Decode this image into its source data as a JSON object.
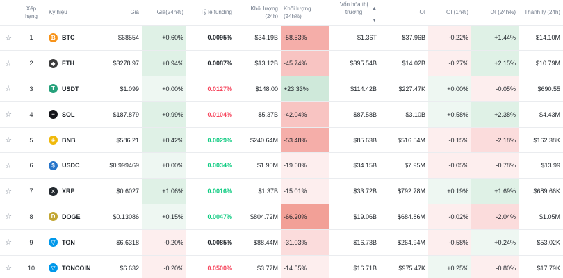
{
  "columns": {
    "rank": "Xếp hạng",
    "symbol": "Ký hiệu",
    "price": "Giá",
    "change24h": "Giá(24h%)",
    "funding": "Tỷ lệ funding",
    "volume": "Khối lượng (24h)",
    "volume_change": "Khối lượng (24h%)",
    "mcap": "Vốn hóa thị trường",
    "oi": "OI",
    "oi1h": "OI (1h%)",
    "oi24h": "OI (24h%)",
    "liq": "Thanh lý (24h)"
  },
  "rows": [
    {
      "rank": "1",
      "symbol": "BTC",
      "icon": "bitcoin-icon",
      "icon_glyph": "₿",
      "icon_color": "#f7931a",
      "price": "$68554",
      "change": "+0.60%",
      "funding": "0.0095%",
      "funding_color": "#1e2329",
      "volume": "$34.19B",
      "vol_change": "-58.53%",
      "mcap": "$1.36T",
      "oi": "$37.96B",
      "oi1h": "-0.22%",
      "oi24h": "+1.44%",
      "liq": "$14.10M"
    },
    {
      "rank": "2",
      "symbol": "ETH",
      "icon": "ethereum-icon",
      "icon_glyph": "◆",
      "icon_color": "#3c3c3d",
      "price": "$3278.97",
      "change": "+0.94%",
      "funding": "0.0087%",
      "funding_color": "#1e2329",
      "volume": "$13.12B",
      "vol_change": "-45.74%",
      "mcap": "$395.54B",
      "oi": "$14.02B",
      "oi1h": "-0.27%",
      "oi24h": "+2.15%",
      "liq": "$10.79M"
    },
    {
      "rank": "3",
      "symbol": "USDT",
      "icon": "tether-icon",
      "icon_glyph": "T",
      "icon_color": "#26a17b",
      "price": "$1.099",
      "change": "+0.00%",
      "funding": "0.0127%",
      "funding_color": "#f6465d",
      "volume": "$148.00",
      "vol_change": "+23.33%",
      "mcap": "$114.42B",
      "oi": "$227.47K",
      "oi1h": "+0.00%",
      "oi24h": "-0.05%",
      "liq": "$690.55"
    },
    {
      "rank": "4",
      "symbol": "SOL",
      "icon": "solana-icon",
      "icon_glyph": "≡",
      "icon_color": "#14151a",
      "price": "$187.879",
      "change": "+0.99%",
      "funding": "0.0104%",
      "funding_color": "#f6465d",
      "volume": "$5.37B",
      "vol_change": "-42.04%",
      "mcap": "$87.58B",
      "oi": "$3.10B",
      "oi1h": "+0.58%",
      "oi24h": "+2.38%",
      "liq": "$4.43M"
    },
    {
      "rank": "5",
      "symbol": "BNB",
      "icon": "bnb-icon",
      "icon_glyph": "◈",
      "icon_color": "#f0b90b",
      "price": "$586.21",
      "change": "+0.42%",
      "funding": "0.0029%",
      "funding_color": "#0ecb81",
      "volume": "$240.64M",
      "vol_change": "-53.48%",
      "mcap": "$85.63B",
      "oi": "$516.54M",
      "oi1h": "-0.15%",
      "oi24h": "-2.18%",
      "liq": "$162.38K"
    },
    {
      "rank": "6",
      "symbol": "USDC",
      "icon": "usdc-icon",
      "icon_glyph": "$",
      "icon_color": "#2775ca",
      "price": "$0.999469",
      "change": "+0.00%",
      "funding": "0.0034%",
      "funding_color": "#0ecb81",
      "volume": "$1.90M",
      "vol_change": "-19.60%",
      "mcap": "$34.15B",
      "oi": "$7.95M",
      "oi1h": "-0.05%",
      "oi24h": "-0.78%",
      "liq": "$13.99"
    },
    {
      "rank": "7",
      "symbol": "XRP",
      "icon": "xrp-icon",
      "icon_glyph": "✕",
      "icon_color": "#23292f",
      "price": "$0.6027",
      "change": "+1.06%",
      "funding": "0.0016%",
      "funding_color": "#0ecb81",
      "volume": "$1.37B",
      "vol_change": "-15.01%",
      "mcap": "$33.72B",
      "oi": "$792.78M",
      "oi1h": "+0.19%",
      "oi24h": "+1.69%",
      "liq": "$689.66K"
    },
    {
      "rank": "8",
      "symbol": "DOGE",
      "icon": "dogecoin-icon",
      "icon_glyph": "D",
      "icon_color": "#c2a633",
      "price": "$0.13086",
      "change": "+0.15%",
      "funding": "0.0047%",
      "funding_color": "#0ecb81",
      "volume": "$804.72M",
      "vol_change": "-66.20%",
      "mcap": "$19.06B",
      "oi": "$684.86M",
      "oi1h": "-0.02%",
      "oi24h": "-2.04%",
      "liq": "$1.05M"
    },
    {
      "rank": "9",
      "symbol": "TON",
      "icon": "toncoin-icon",
      "icon_glyph": "▽",
      "icon_color": "#0098ea",
      "price": "$6.6318",
      "change": "-0.20%",
      "funding": "0.0085%",
      "funding_color": "#1e2329",
      "volume": "$88.44M",
      "vol_change": "-31.03%",
      "mcap": "$16.73B",
      "oi": "$264.94M",
      "oi1h": "-0.58%",
      "oi24h": "+0.24%",
      "liq": "$53.02K"
    },
    {
      "rank": "10",
      "symbol": "TONCOIN",
      "icon": "toncoin-icon",
      "icon_glyph": "▽",
      "icon_color": "#0098ea",
      "price": "$6.632",
      "change": "-0.20%",
      "funding": "0.0500%",
      "funding_color": "#f6465d",
      "volume": "$3.77M",
      "vol_change": "-14.55%",
      "mcap": "$16.71B",
      "oi": "$975.47K",
      "oi1h": "+0.25%",
      "oi24h": "-0.80%",
      "liq": "$17.79K"
    }
  ],
  "colors": {
    "positive": "#0ecb81",
    "negative": "#f6465d",
    "text": "#1e2329",
    "muted": "#707a8a"
  }
}
